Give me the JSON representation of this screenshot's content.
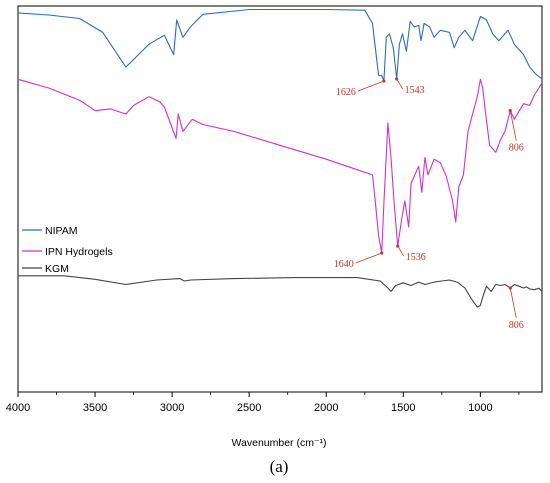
{
  "chart_data": {
    "type": "line",
    "xlabel": "Wavenumber (cm⁻¹)",
    "caption": "(a)",
    "xlim": [
      4000,
      600
    ],
    "x_ticks": [
      4000,
      3500,
      3000,
      2500,
      2000,
      1500,
      1000
    ],
    "grid": false,
    "legend_position": "left",
    "series": [
      {
        "name": "NIPAM",
        "color": "#2f6cc1",
        "band": [
          0.0,
          0.18
        ],
        "points": [
          [
            4000,
            0.1
          ],
          [
            3800,
            0.13
          ],
          [
            3600,
            0.18
          ],
          [
            3450,
            0.38
          ],
          [
            3300,
            0.88
          ],
          [
            3150,
            0.55
          ],
          [
            3050,
            0.42
          ],
          [
            2990,
            0.7
          ],
          [
            2970,
            0.2
          ],
          [
            2930,
            0.45
          ],
          [
            2880,
            0.3
          ],
          [
            2800,
            0.12
          ],
          [
            2500,
            0.05
          ],
          [
            2000,
            0.05
          ],
          [
            1750,
            0.06
          ],
          [
            1700,
            0.25
          ],
          [
            1660,
            1.0
          ],
          [
            1640,
            1.0
          ],
          [
            1626,
            1.08
          ],
          [
            1610,
            0.45
          ],
          [
            1590,
            0.4
          ],
          [
            1565,
            0.6
          ],
          [
            1543,
            1.05
          ],
          [
            1525,
            0.55
          ],
          [
            1505,
            0.4
          ],
          [
            1480,
            0.65
          ],
          [
            1455,
            0.22
          ],
          [
            1430,
            0.3
          ],
          [
            1400,
            0.28
          ],
          [
            1385,
            0.5
          ],
          [
            1365,
            0.25
          ],
          [
            1330,
            0.3
          ],
          [
            1300,
            0.45
          ],
          [
            1260,
            0.35
          ],
          [
            1200,
            0.38
          ],
          [
            1170,
            0.6
          ],
          [
            1140,
            0.45
          ],
          [
            1100,
            0.35
          ],
          [
            1050,
            0.5
          ],
          [
            1000,
            0.15
          ],
          [
            960,
            0.2
          ],
          [
            920,
            0.4
          ],
          [
            880,
            0.5
          ],
          [
            820,
            0.35
          ],
          [
            780,
            0.55
          ],
          [
            720,
            0.7
          ],
          [
            680,
            0.88
          ],
          [
            640,
            0.98
          ],
          [
            600,
            1.05
          ]
        ]
      },
      {
        "name": "IPN Hydrogels",
        "color": "#cc33cc",
        "band": [
          0.19,
          0.64
        ],
        "points": [
          [
            4000,
            0.0
          ],
          [
            3800,
            0.05
          ],
          [
            3600,
            0.12
          ],
          [
            3500,
            0.18
          ],
          [
            3400,
            0.17
          ],
          [
            3300,
            0.2
          ],
          [
            3250,
            0.15
          ],
          [
            3150,
            0.1
          ],
          [
            3080,
            0.13
          ],
          [
            3050,
            0.16
          ],
          [
            3000,
            0.28
          ],
          [
            2975,
            0.34
          ],
          [
            2960,
            0.2
          ],
          [
            2930,
            0.3
          ],
          [
            2870,
            0.23
          ],
          [
            2800,
            0.26
          ],
          [
            2600,
            0.3
          ],
          [
            2300,
            0.38
          ],
          [
            2000,
            0.46
          ],
          [
            1800,
            0.52
          ],
          [
            1700,
            0.55
          ],
          [
            1680,
            0.72
          ],
          [
            1660,
            0.9
          ],
          [
            1640,
            1.0
          ],
          [
            1625,
            0.7
          ],
          [
            1600,
            0.25
          ],
          [
            1580,
            0.45
          ],
          [
            1560,
            0.7
          ],
          [
            1536,
            0.96
          ],
          [
            1510,
            0.8
          ],
          [
            1490,
            0.7
          ],
          [
            1465,
            0.85
          ],
          [
            1450,
            0.6
          ],
          [
            1400,
            0.5
          ],
          [
            1380,
            0.65
          ],
          [
            1360,
            0.45
          ],
          [
            1340,
            0.55
          ],
          [
            1300,
            0.46
          ],
          [
            1260,
            0.48
          ],
          [
            1220,
            0.56
          ],
          [
            1180,
            0.7
          ],
          [
            1160,
            0.82
          ],
          [
            1140,
            0.62
          ],
          [
            1110,
            0.55
          ],
          [
            1080,
            0.3
          ],
          [
            1050,
            0.2
          ],
          [
            1020,
            0.1
          ],
          [
            1000,
            0.0
          ],
          [
            985,
            0.05
          ],
          [
            965,
            0.2
          ],
          [
            940,
            0.38
          ],
          [
            900,
            0.42
          ],
          [
            870,
            0.35
          ],
          [
            840,
            0.3
          ],
          [
            806,
            0.18
          ],
          [
            780,
            0.23
          ],
          [
            760,
            0.2
          ],
          [
            720,
            0.14
          ],
          [
            680,
            0.15
          ],
          [
            650,
            0.09
          ],
          [
            620,
            0.05
          ],
          [
            600,
            0.02
          ]
        ]
      },
      {
        "name": "KGM",
        "color": "#444444",
        "band": [
          0.69,
          0.78
        ],
        "points": [
          [
            4000,
            0.1
          ],
          [
            3700,
            0.1
          ],
          [
            3500,
            0.2
          ],
          [
            3300,
            0.35
          ],
          [
            3100,
            0.22
          ],
          [
            2950,
            0.18
          ],
          [
            2920,
            0.25
          ],
          [
            2880,
            0.22
          ],
          [
            2600,
            0.18
          ],
          [
            2200,
            0.15
          ],
          [
            1800,
            0.15
          ],
          [
            1650,
            0.25
          ],
          [
            1600,
            0.45
          ],
          [
            1580,
            0.55
          ],
          [
            1550,
            0.38
          ],
          [
            1500,
            0.3
          ],
          [
            1450,
            0.38
          ],
          [
            1400,
            0.28
          ],
          [
            1360,
            0.35
          ],
          [
            1300,
            0.28
          ],
          [
            1250,
            0.25
          ],
          [
            1200,
            0.22
          ],
          [
            1150,
            0.28
          ],
          [
            1100,
            0.45
          ],
          [
            1060,
            0.75
          ],
          [
            1020,
            1.0
          ],
          [
            1000,
            0.95
          ],
          [
            980,
            0.65
          ],
          [
            960,
            0.4
          ],
          [
            930,
            0.55
          ],
          [
            900,
            0.35
          ],
          [
            870,
            0.38
          ],
          [
            840,
            0.35
          ],
          [
            806,
            0.45
          ],
          [
            780,
            0.35
          ],
          [
            750,
            0.4
          ],
          [
            720,
            0.45
          ],
          [
            700,
            0.42
          ],
          [
            680,
            0.48
          ],
          [
            650,
            0.5
          ],
          [
            620,
            0.46
          ],
          [
            600,
            0.55
          ]
        ]
      }
    ],
    "annotations": [
      {
        "text": "1626",
        "series": 0,
        "x": 1626,
        "side": "left"
      },
      {
        "text": "1543",
        "series": 0,
        "x": 1543,
        "side": "right"
      },
      {
        "text": "1640",
        "series": 1,
        "x": 1640,
        "side": "left"
      },
      {
        "text": "1536",
        "series": 1,
        "x": 1536,
        "side": "right"
      },
      {
        "text": "806",
        "series": 1,
        "x": 806,
        "side": "below"
      },
      {
        "text": "806",
        "series": 2,
        "x": 806,
        "side": "below"
      }
    ],
    "annotation_color": "#c0392b"
  }
}
